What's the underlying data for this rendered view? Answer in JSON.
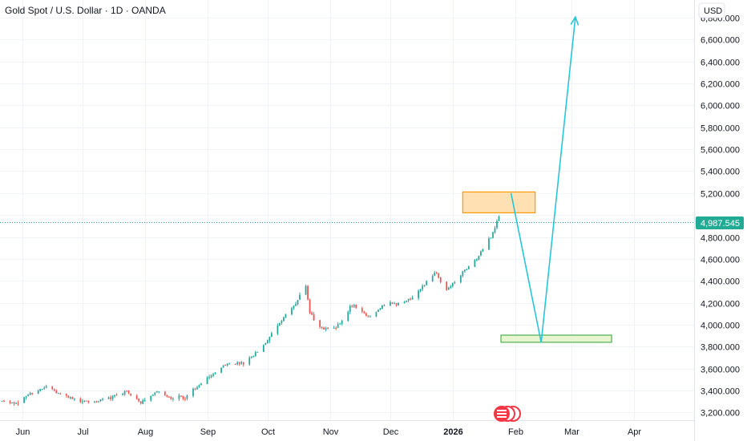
{
  "chart_data": {
    "type": "candlestick",
    "title": "Gold Spot / U.S. Dollar · 1D · OANDA",
    "currency": "USD",
    "current_price": 4987.545,
    "current_price_label": "4,987.545",
    "y_ticks": [
      3200,
      3400,
      3600,
      3800,
      4000,
      4200,
      4400,
      4600,
      4800,
      5000,
      5200,
      5400,
      5600,
      5800,
      6000,
      6200,
      6400,
      6600,
      6800
    ],
    "y_tick_labels": [
      "3,200.000",
      "3,400.000",
      "3,600.000",
      "3,800.000",
      "4,000.000",
      "4,200.000",
      "4,400.000",
      "4,600.000",
      "4,800.000",
      "",
      "5,200.000",
      "5,400.000",
      "5,600.000",
      "5,800.000",
      "6,000.000",
      "6,200.000",
      "6,400.000",
      "6,600.000",
      "6,800.000"
    ],
    "ylim": [
      3130,
      6960
    ],
    "x_tick_labels": [
      "Jun",
      "Jul",
      "Aug",
      "Sep",
      "Oct",
      "Nov",
      "Dec",
      "2026",
      "Feb",
      "Mar",
      "Apr"
    ],
    "x_tick_dates": [
      "2025-06-01",
      "2025-07-01",
      "2025-08-01",
      "2025-09-01",
      "2025-10-01",
      "2025-11-01",
      "2025-12-01",
      "2026-01-01",
      "2026-02-01",
      "2026-03-01",
      "2026-04-01"
    ],
    "bold_x_labels": [
      "2026"
    ],
    "xlim": [
      "2025-05-21",
      "2026-05-01"
    ],
    "series": [
      {
        "type": "candlestick",
        "points": [
          [
            "2025-05-22",
            3300
          ],
          [
            "2025-05-30",
            3290
          ],
          [
            "2025-06-05",
            3375
          ],
          [
            "2025-06-13",
            3435
          ],
          [
            "2025-06-20",
            3368
          ],
          [
            "2025-06-30",
            3300
          ],
          [
            "2025-07-08",
            3300
          ],
          [
            "2025-07-15",
            3340
          ],
          [
            "2025-07-23",
            3388
          ],
          [
            "2025-07-30",
            3290
          ],
          [
            "2025-08-07",
            3395
          ],
          [
            "2025-08-14",
            3330
          ],
          [
            "2025-08-21",
            3340
          ],
          [
            "2025-09-02",
            3530
          ],
          [
            "2025-09-10",
            3640
          ],
          [
            "2025-09-19",
            3645
          ],
          [
            "2025-09-29",
            3810
          ],
          [
            "2025-10-08",
            4040
          ],
          [
            "2025-10-15",
            4200
          ],
          [
            "2025-10-20",
            4360
          ],
          [
            "2025-10-22",
            4100
          ],
          [
            "2025-10-28",
            3960
          ],
          [
            "2025-11-04",
            3960
          ],
          [
            "2025-11-12",
            4180
          ],
          [
            "2025-11-20",
            4070
          ],
          [
            "2025-11-28",
            4180
          ],
          [
            "2025-12-08",
            4200
          ],
          [
            "2025-12-15",
            4300
          ],
          [
            "2025-12-23",
            4480
          ],
          [
            "2025-12-29",
            4320
          ],
          [
            "2026-01-06",
            4470
          ],
          [
            "2026-01-13",
            4600
          ],
          [
            "2026-01-20",
            4800
          ],
          [
            "2026-01-24",
            4987
          ]
        ]
      }
    ],
    "annotations": [
      {
        "type": "zone",
        "color": "#ff9800",
        "fill": "#ffe0b2",
        "x_start": "2026-01-06",
        "x_end": "2026-02-11",
        "y_low": 5020,
        "y_high": 5210
      },
      {
        "type": "zone",
        "color": "#4caf50",
        "fill": "#e8f5d0",
        "x_start": "2026-01-25",
        "x_end": "2026-03-21",
        "y_low": 3840,
        "y_high": 3905
      },
      {
        "type": "arrow",
        "color": "#26c6da",
        "path": [
          [
            "2026-01-30",
            5200
          ],
          [
            "2026-02-14",
            3838
          ],
          [
            "2026-03-03",
            6805
          ]
        ]
      }
    ]
  },
  "colors": {
    "up": "#26a69a",
    "down": "#ef5350",
    "price_line": "#22ab94",
    "grid": "#f0f3fa",
    "text": "#131722",
    "border": "#e0e3eb"
  }
}
